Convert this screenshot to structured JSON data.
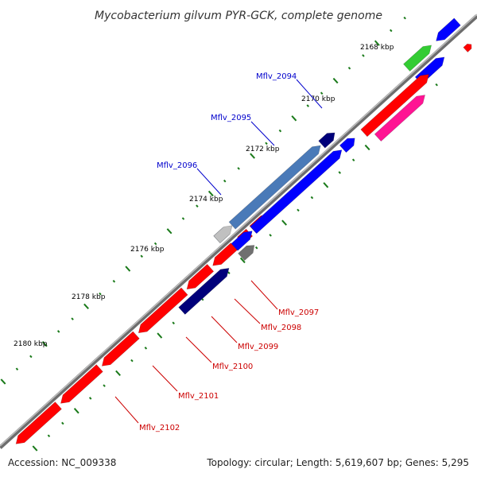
{
  "title": "Mycobacterium gilvum PYR-GCK, complete genome",
  "accession": "Accession: NC_009338",
  "topology": "Topology: circular; Length: 5,619,607 bp; Genes: 5,295",
  "kbp_labels": [
    "2168 kbp",
    "2170 kbp",
    "2172 kbp",
    "2174 kbp",
    "2176 kbp",
    "2178 kbp",
    "2180 kbp"
  ],
  "gene_labels": {
    "outer": [
      "Mflv_2094",
      "Mflv_2095",
      "Mflv_2096"
    ],
    "inner": [
      "Mflv_2097",
      "Mflv_2098",
      "Mflv_2099",
      "Mflv_2100",
      "Mflv_2101",
      "Mflv_2102"
    ]
  },
  "colors": {
    "backbone": "#8a8a8a",
    "outer_label": "#0000cc",
    "inner_label": "#cc0000",
    "tick": "#1a7a1a",
    "red": "#ff0000",
    "blue": "#0000ff",
    "navy": "#00007a",
    "steelblue": "#4a7ab8",
    "gray": "#c0c0c0",
    "darkgray": "#707070",
    "green": "#33cc33",
    "magenta": "#ff1493"
  }
}
